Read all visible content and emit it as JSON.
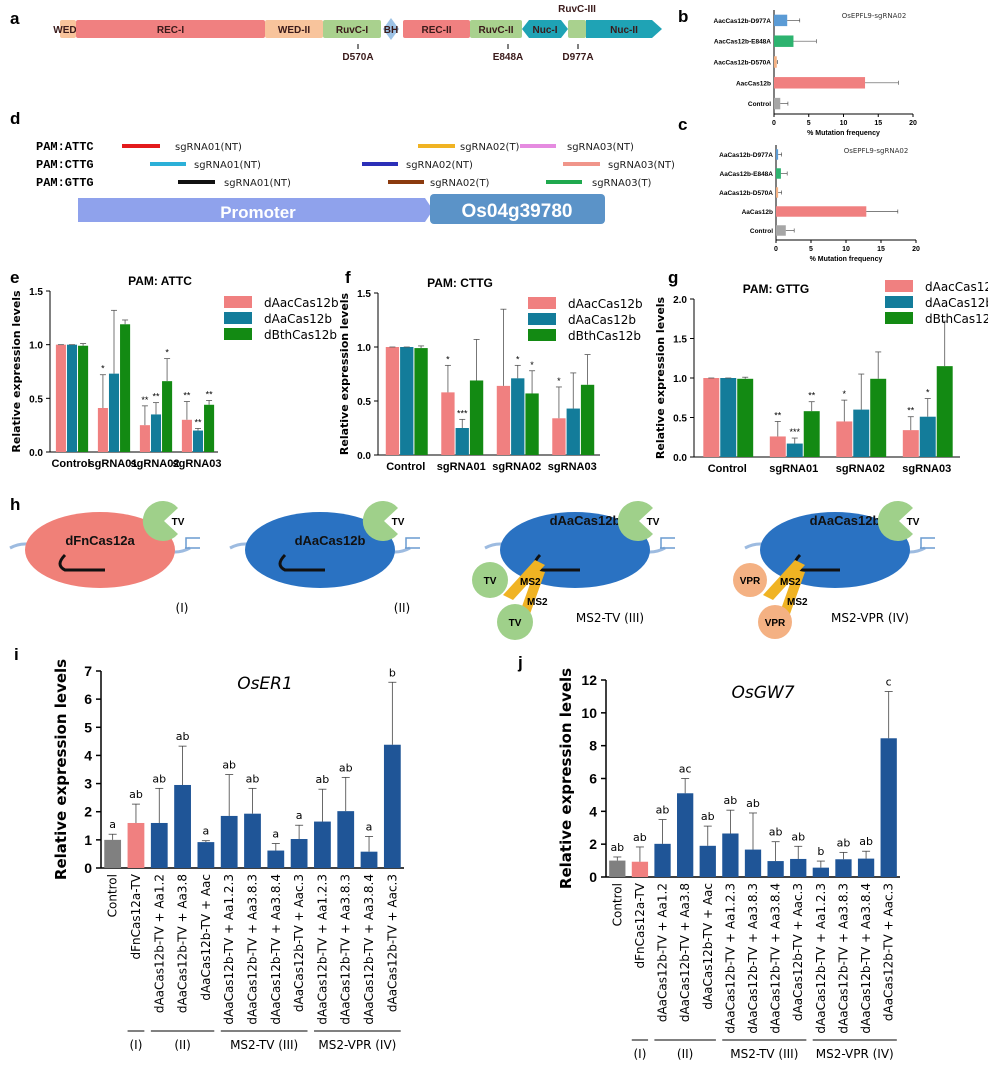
{
  "panel_labels": {
    "a": "a",
    "b": "b",
    "c": "c",
    "d": "d",
    "e": "e",
    "f": "f",
    "g": "g",
    "h": "h",
    "i": "i",
    "j": "j"
  },
  "panel_a": {
    "domains": [
      {
        "label": "WED-I",
        "color": "#f8c49c"
      },
      {
        "label": "REC-I",
        "color": "#f08080"
      },
      {
        "label": "WED-II",
        "color": "#f8c49c"
      },
      {
        "label": "RuvC-I",
        "color": "#a9d18e"
      },
      {
        "label": "BH",
        "color": "#9dc3e6"
      },
      {
        "label": "REC-II",
        "color": "#f08080"
      },
      {
        "label": "RuvC-II",
        "color": "#a9d18e"
      },
      {
        "label": "Nuc-I",
        "color": "#1fa3b5"
      },
      {
        "label": "RuvC-III",
        "color": "#a9d18e"
      },
      {
        "label": "Nuc-II",
        "color": "#1fa3b5"
      }
    ],
    "mutations": [
      "D570A",
      "E848A",
      "D977A"
    ]
  },
  "panel_d": {
    "pams": [
      "PAM:ATTC",
      "PAM:CTTG",
      "PAM:GTTG"
    ],
    "guides": [
      [
        {
          "label": "sgRNA01(NT)",
          "color": "#e31a1c"
        },
        {
          "label": "sgRNA02(T)",
          "color": "#f0b323"
        },
        {
          "label": "sgRNA03(NT)",
          "color": "#e58be0"
        }
      ],
      [
        {
          "label": "sgRNA01(NT)",
          "color": "#2bb0d8"
        },
        {
          "label": "sgRNA02(NT)",
          "color": "#2b2fb8"
        },
        {
          "label": "sgRNA03(NT)",
          "color": "#f0958a"
        }
      ],
      [
        {
          "label": "sgRNA01(NT)",
          "color": "#111111"
        },
        {
          "label": "sgRNA02(T)",
          "color": "#8b3a0e"
        },
        {
          "label": "sgRNA03(T)",
          "color": "#1fa94e"
        }
      ]
    ],
    "promoter": "Promoter",
    "gene": "Os04g39780"
  },
  "panel_h": {
    "constructs": [
      {
        "protein": "dFnCas12a",
        "effector": "TV",
        "label": "(I)"
      },
      {
        "protein": "dAaCas12b",
        "effector": "TV",
        "label": "(II)"
      },
      {
        "protein": "dAaCas12b",
        "effector": "TV",
        "aptamer": "MS2",
        "label": "MS2-TV (III)"
      },
      {
        "protein": "dAaCas12b",
        "effector": "TV",
        "aptamer": "MS2",
        "recruited": "VPR",
        "label": "MS2-VPR (IV)"
      }
    ]
  },
  "chart_data": [
    {
      "id": "b",
      "type": "bar",
      "orientation": "horizontal",
      "annotation": "OsEPFL9-sgRNA02",
      "xlabel": "% Mutation frequency",
      "xlim": [
        0,
        20
      ],
      "xticks": [
        0,
        5,
        10,
        15,
        20
      ],
      "categories": [
        "AacCas12b-D977A",
        "AacCas12b-E848A",
        "AacCas12b-D570A",
        "AacCas12b",
        "Control"
      ],
      "values": [
        1.9,
        2.8,
        0.4,
        13.1,
        0.9
      ],
      "error_top": [
        3.7,
        6.1,
        0.5,
        17.9,
        2.0
      ],
      "colors": [
        "#5b9bd5",
        "#2db36f",
        "#f4b183",
        "#f08080",
        "#a6a6a6"
      ]
    },
    {
      "id": "c",
      "type": "bar",
      "orientation": "horizontal",
      "annotation": "OsEPFL9-sgRNA02",
      "xlabel": "% Mutation frequency",
      "xlim": [
        0,
        20
      ],
      "xticks": [
        0,
        5,
        10,
        15,
        20
      ],
      "categories": [
        "AaCas12b-D977A",
        "AaCas12b-E848A",
        "AaCas12b-D570A",
        "AaCas12b",
        "Control"
      ],
      "values": [
        0.3,
        0.7,
        0.3,
        12.9,
        1.4
      ],
      "error_top": [
        0.8,
        1.6,
        0.8,
        17.4,
        2.6
      ],
      "colors": [
        "#5b9bd5",
        "#2db36f",
        "#f4b183",
        "#f08080",
        "#a6a6a6"
      ]
    },
    {
      "id": "e",
      "type": "bar",
      "title": "PAM: ATTC",
      "ylabel": "Relative expression levels",
      "ylim": [
        0,
        1.5
      ],
      "yticks": [
        "0.0",
        "0.5",
        "1.0",
        "1.5"
      ],
      "categories": [
        "Control",
        "sgRNA01",
        "sgRNA02",
        "sgRNA03"
      ],
      "legend": "top-right",
      "series": [
        {
          "name": "dAacCas12b",
          "color": "#f08080",
          "values": [
            1.0,
            0.41,
            0.25,
            0.3
          ],
          "error_top": [
            1.0,
            0.72,
            0.43,
            0.47
          ],
          "sig": [
            "",
            "*",
            "**",
            "**"
          ]
        },
        {
          "name": "dAaCas12b",
          "color": "#137c9a",
          "values": [
            1.0,
            0.73,
            0.35,
            0.2
          ],
          "error_top": [
            1.0,
            1.32,
            0.46,
            0.22
          ],
          "sig": [
            "",
            "",
            "**",
            "**"
          ]
        },
        {
          "name": "dBthCas12b",
          "color": "#138a13",
          "values": [
            0.99,
            1.19,
            0.66,
            0.44
          ],
          "error_top": [
            1.01,
            1.23,
            0.87,
            0.48
          ],
          "sig": [
            "",
            "",
            "*",
            "**"
          ]
        }
      ]
    },
    {
      "id": "f",
      "type": "bar",
      "title": "PAM: CTTG",
      "ylabel": "Relative expression levels",
      "ylim": [
        0,
        1.5
      ],
      "yticks": [
        "0.0",
        "0.5",
        "1.0",
        "1.5"
      ],
      "categories": [
        "Control",
        "sgRNA01",
        "sgRNA02",
        "sgRNA03"
      ],
      "legend": "top-right",
      "series": [
        {
          "name": "dAacCas12b",
          "color": "#f08080",
          "values": [
            1.0,
            0.58,
            0.64,
            0.34
          ],
          "error_top": [
            1.0,
            0.83,
            1.35,
            0.63
          ],
          "sig": [
            "",
            "*",
            "",
            "*"
          ]
        },
        {
          "name": "dAaCas12b",
          "color": "#137c9a",
          "values": [
            1.0,
            0.25,
            0.71,
            0.43
          ],
          "error_top": [
            1.0,
            0.33,
            0.83,
            0.76
          ],
          "sig": [
            "",
            "***",
            "*",
            ""
          ]
        },
        {
          "name": "dBthCas12b",
          "color": "#138a13",
          "values": [
            0.99,
            0.69,
            0.57,
            0.65
          ],
          "error_top": [
            1.01,
            1.07,
            0.78,
            0.93
          ],
          "sig": [
            "",
            "",
            "*",
            ""
          ]
        }
      ]
    },
    {
      "id": "g",
      "type": "bar",
      "title": "PAM: GTTG",
      "ylabel": "Relative expression levels",
      "ylim": [
        0,
        2.0
      ],
      "yticks": [
        "0.0",
        "0.5",
        "1.0",
        "1.5",
        "2.0"
      ],
      "categories": [
        "Control",
        "sgRNA01",
        "sgRNA02",
        "sgRNA03"
      ],
      "legend": "top-right",
      "series": [
        {
          "name": "dAacCas12b",
          "color": "#f08080",
          "values": [
            1.0,
            0.26,
            0.45,
            0.34
          ],
          "error_top": [
            1.0,
            0.45,
            0.72,
            0.51
          ],
          "sig": [
            "",
            "**",
            "*",
            "**"
          ]
        },
        {
          "name": "dAaCas12b",
          "color": "#137c9a",
          "values": [
            1.0,
            0.17,
            0.6,
            0.51
          ],
          "error_top": [
            1.0,
            0.24,
            1.05,
            0.74
          ],
          "sig": [
            "",
            "***",
            "",
            "*"
          ]
        },
        {
          "name": "dBthCas12b",
          "color": "#138a13",
          "values": [
            0.99,
            0.58,
            0.99,
            1.15
          ],
          "error_top": [
            1.01,
            0.7,
            1.33,
            1.72
          ],
          "sig": [
            "",
            "**",
            "",
            ""
          ]
        }
      ]
    },
    {
      "id": "i",
      "type": "bar",
      "title": "OsER1",
      "ylabel": "Relative expression levels",
      "ylim": [
        0,
        7
      ],
      "yticks": [
        "0",
        "1",
        "2",
        "3",
        "4",
        "5",
        "6",
        "7"
      ],
      "categories": [
        "Control",
        "dFnCas12a-TV",
        "dAaCas12b-TV + Aa1.2",
        "dAaCas12b-TV + Aa3.8",
        "dAaCas12b-TV + Aac",
        "dAaCas12b-TV + Aa1.2.3",
        "dAaCas12b-TV + Aa3.8.3",
        "dAaCas12b-TV + Aa3.8.4",
        "dAaCas12b-TV + Aac.3",
        "dAaCas12b-TV + Aa1.2.3",
        "dAaCas12b-TV + Aa3.8.3",
        "dAaCas12b-TV + Aa3.8.4",
        "dAaCas12b-TV + Aac.3"
      ],
      "values": [
        1.0,
        1.6,
        1.6,
        2.95,
        0.92,
        1.85,
        1.93,
        0.62,
        1.03,
        1.65,
        2.02,
        0.58,
        4.38
      ],
      "error_top": [
        1.2,
        2.27,
        2.83,
        4.33,
        0.97,
        3.32,
        2.83,
        0.87,
        1.52,
        2.8,
        3.22,
        1.12,
        6.6
      ],
      "letters": [
        "a",
        "ab",
        "ab",
        "ab",
        "a",
        "ab",
        "ab",
        "a",
        "a",
        "ab",
        "ab",
        "a",
        "b"
      ],
      "colors": [
        "#808080",
        "#f08080",
        "#1f5597",
        "#1f5597",
        "#1f5597",
        "#1f5597",
        "#1f5597",
        "#1f5597",
        "#1f5597",
        "#1f5597",
        "#1f5597",
        "#1f5597",
        "#1f5597"
      ],
      "groups": [
        {
          "label": "(I)",
          "span": [
            1,
            1
          ]
        },
        {
          "label": "(II)",
          "span": [
            2,
            4
          ]
        },
        {
          "label": "MS2-TV (III)",
          "span": [
            5,
            8
          ]
        },
        {
          "label": "MS2-VPR (IV)",
          "span": [
            9,
            12
          ]
        }
      ]
    },
    {
      "id": "j",
      "type": "bar",
      "title": "OsGW7",
      "ylabel": "Relative expression levels",
      "ylim": [
        0,
        12
      ],
      "yticks": [
        "0",
        "2",
        "4",
        "6",
        "8",
        "10",
        "12"
      ],
      "categories": [
        "Control",
        "dFnCas12a-TV",
        "dAaCas12b-TV + Aa1.2",
        "dAaCas12b-TV + Aa3.8",
        "dAaCas12b-TV + Aac",
        "dAaCas12b-TV + Aa1.2.3",
        "dAaCas12b-TV + Aa3.8.3",
        "dAaCas12b-TV + Aa3.8.4",
        "dAaCas12b-TV + Aac.3",
        "dAaCas12b-TV + Aa1.2.3",
        "dAaCas12b-TV + Aa3.8.3",
        "dAaCas12b-TV + Aa3.8.4",
        "dAaCas12b-TV + Aac.3"
      ],
      "values": [
        1.0,
        0.93,
        2.02,
        5.1,
        1.9,
        2.65,
        1.67,
        0.97,
        1.1,
        0.57,
        1.08,
        1.12,
        8.45
      ],
      "error_top": [
        1.22,
        1.83,
        3.5,
        6.0,
        3.1,
        4.07,
        3.9,
        2.15,
        1.87,
        0.97,
        1.5,
        1.57,
        11.3
      ],
      "letters": [
        "ab",
        "ab",
        "ab",
        "ac",
        "ab",
        "ab",
        "ab",
        "ab",
        "ab",
        "b",
        "ab",
        "ab",
        "c"
      ],
      "colors": [
        "#808080",
        "#f08080",
        "#1f5597",
        "#1f5597",
        "#1f5597",
        "#1f5597",
        "#1f5597",
        "#1f5597",
        "#1f5597",
        "#1f5597",
        "#1f5597",
        "#1f5597",
        "#1f5597"
      ],
      "groups": [
        {
          "label": "(I)",
          "span": [
            1,
            1
          ]
        },
        {
          "label": "(II)",
          "span": [
            2,
            4
          ]
        },
        {
          "label": "MS2-TV (III)",
          "span": [
            5,
            8
          ]
        },
        {
          "label": "MS2-VPR (IV)",
          "span": [
            9,
            12
          ]
        }
      ]
    }
  ]
}
